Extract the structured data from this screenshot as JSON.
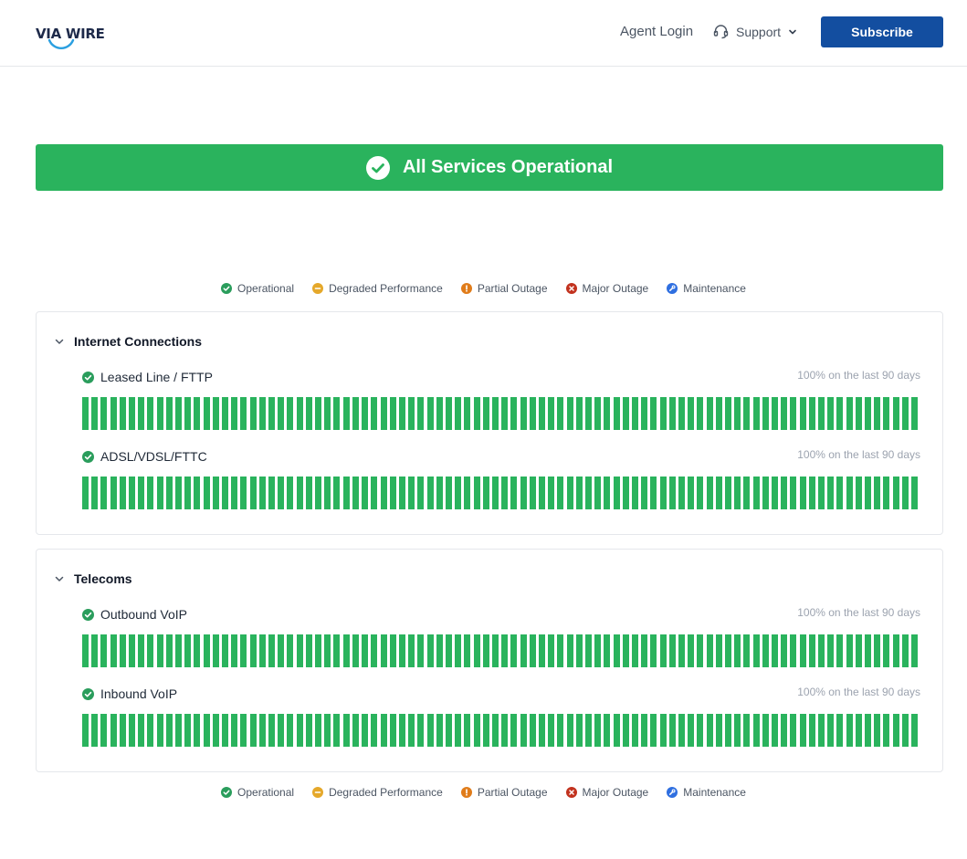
{
  "header": {
    "logo_text": "VIA WIRE",
    "agent_login_label": "Agent Login",
    "support_label": "Support",
    "subscribe_label": "Subscribe"
  },
  "banner": {
    "status_text": "All Services Operational",
    "color": "#2ab35d"
  },
  "legend": [
    {
      "label": "Operational",
      "icon": "check-circle-icon",
      "color": "#2a9d5c"
    },
    {
      "label": "Degraded Performance",
      "icon": "minus-circle-icon",
      "color": "#e5a82a"
    },
    {
      "label": "Partial Outage",
      "icon": "exclamation-circle-icon",
      "color": "#e07c1a"
    },
    {
      "label": "Major Outage",
      "icon": "x-circle-icon",
      "color": "#c2321e"
    },
    {
      "label": "Maintenance",
      "icon": "wrench-circle-icon",
      "color": "#2f6fe0"
    }
  ],
  "groups": [
    {
      "title": "Internet Connections",
      "components": [
        {
          "name": "Leased Line / FTTP",
          "uptime": "100% on the last 90 days",
          "days_operational": 90
        },
        {
          "name": "ADSL/VDSL/FTTC",
          "uptime": "100% on the last 90 days",
          "days_operational": 90
        }
      ]
    },
    {
      "title": "Telecoms",
      "components": [
        {
          "name": "Outbound VoIP",
          "uptime": "100% on the last 90 days",
          "days_operational": 90
        },
        {
          "name": "Inbound VoIP",
          "uptime": "100% on the last 90 days",
          "days_operational": 90
        }
      ]
    }
  ],
  "colors": {
    "accent": "#134ea0",
    "operational": "#2ab35d"
  }
}
